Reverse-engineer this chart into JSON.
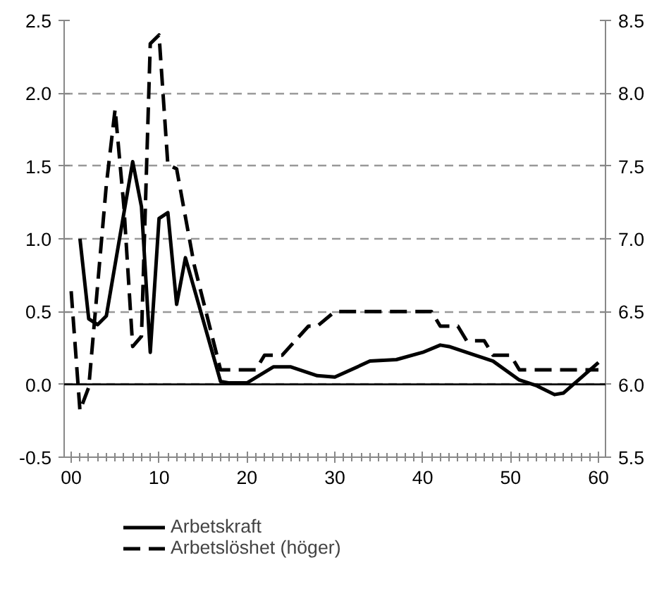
{
  "chart_data": {
    "type": "line",
    "xlim": [
      -0.8,
      60.8
    ],
    "xticks": [
      {
        "value": 0,
        "label": "00"
      },
      10,
      20,
      30,
      40,
      50,
      60
    ],
    "ylim": [
      -0.5,
      2.5
    ],
    "yticks": [
      -0.5,
      {
        "value": 0,
        "label": "0.0"
      },
      0.5,
      {
        "value": 1,
        "label": "1.0"
      },
      1.5,
      {
        "value": 2,
        "label": "2.0"
      },
      2.5
    ],
    "y2lim": [
      5.5,
      8.5
    ],
    "y2ticks": [
      5.5,
      {
        "value": 6,
        "label": "6.0"
      },
      6.5,
      {
        "value": 7,
        "label": "7.0"
      },
      7.5,
      {
        "value": 8,
        "label": "8.0"
      },
      8.5
    ],
    "grid": "y",
    "legend": "bottom",
    "ref_lines": [
      {
        "axis": "y",
        "value": 0,
        "color": "#000000",
        "line_style": "solid"
      }
    ],
    "series": [
      {
        "name": "Arbetskraft",
        "color": "#000000",
        "line_style": "solid",
        "x": [
          1,
          2,
          3,
          4,
          7,
          8,
          9,
          10,
          11,
          12,
          13,
          17,
          18,
          20,
          23,
          25,
          28,
          30,
          34,
          37,
          40,
          42,
          43,
          46,
          48,
          51,
          53,
          55,
          56,
          60
        ],
        "values": [
          1.0,
          0.45,
          0.41,
          0.47,
          1.53,
          1.22,
          0.22,
          1.14,
          1.18,
          0.55,
          0.87,
          0.02,
          0.01,
          0.01,
          0.12,
          0.12,
          0.06,
          0.05,
          0.16,
          0.17,
          0.22,
          0.27,
          0.26,
          0.2,
          0.16,
          0.03,
          -0.01,
          -0.07,
          -0.06,
          0.15
        ]
      },
      {
        "name": "Arbetslöshet (höger)",
        "color": "#000000",
        "line_style": "dashed",
        "axis": "y2",
        "x": [
          0,
          1,
          2,
          4,
          5,
          6,
          7,
          8,
          9,
          10,
          11,
          12,
          14,
          17,
          21,
          22,
          24,
          27,
          28,
          30,
          41,
          42,
          44,
          45,
          47,
          48,
          50,
          51,
          60
        ],
        "values": [
          6.64,
          5.82,
          5.98,
          7.37,
          7.89,
          7.22,
          6.26,
          6.33,
          8.34,
          8.4,
          7.51,
          7.48,
          6.82,
          6.1,
          6.1,
          6.2,
          6.2,
          6.4,
          6.4,
          6.5,
          6.5,
          6.4,
          6.4,
          6.3,
          6.3,
          6.2,
          6.2,
          6.1,
          6.1
        ]
      }
    ]
  }
}
